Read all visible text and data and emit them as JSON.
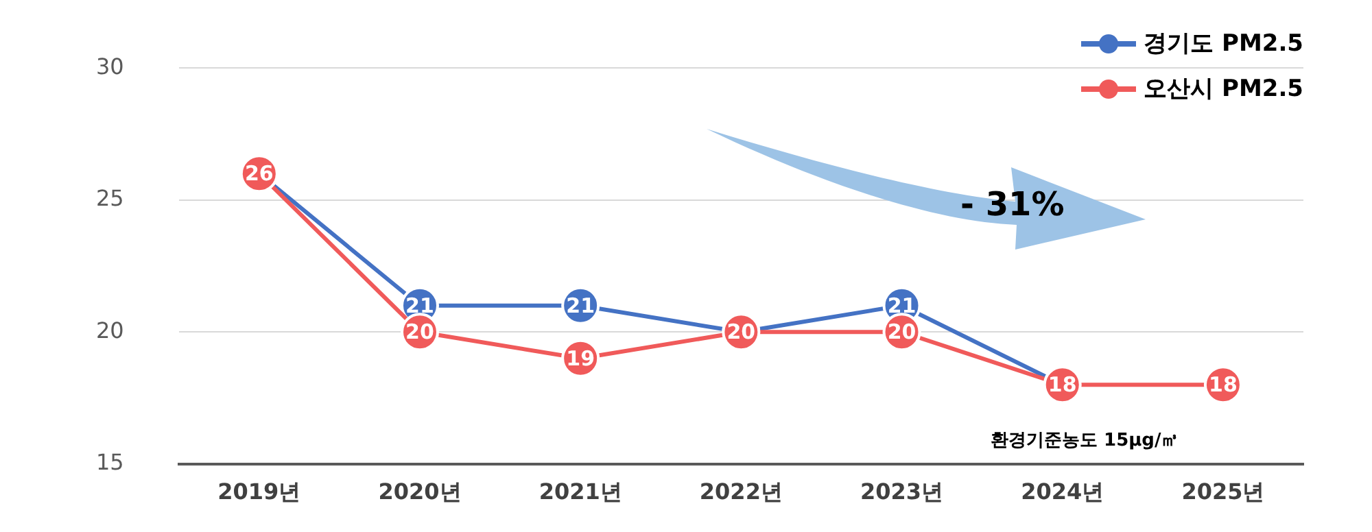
{
  "chart_data": {
    "type": "line",
    "categories": [
      "2019년",
      "2020년",
      "2021년",
      "2022년",
      "2023년",
      "2024년",
      "2025년"
    ],
    "series": [
      {
        "name": "경기도 PM2.5",
        "color": "#4472c4",
        "values": [
          26,
          21,
          21,
          20,
          21,
          18,
          null
        ],
        "value_labels": [
          null,
          "21",
          "21",
          null,
          "21",
          null,
          null
        ]
      },
      {
        "name": "오산시 PM2.5",
        "color": "#f05a5a",
        "values": [
          26,
          20,
          19,
          20,
          20,
          18,
          18
        ],
        "value_labels": [
          "26",
          "20",
          "19",
          "20",
          "20",
          "18",
          "18"
        ]
      }
    ],
    "ylim": [
      15,
      30
    ],
    "yticks": [
      15,
      20,
      25,
      30
    ],
    "grid": "y",
    "legend": "top right",
    "marker": "circle",
    "line_style": "solid",
    "annotations": [
      "- 31%",
      "환경기준농도 15μg/㎥"
    ]
  }
}
